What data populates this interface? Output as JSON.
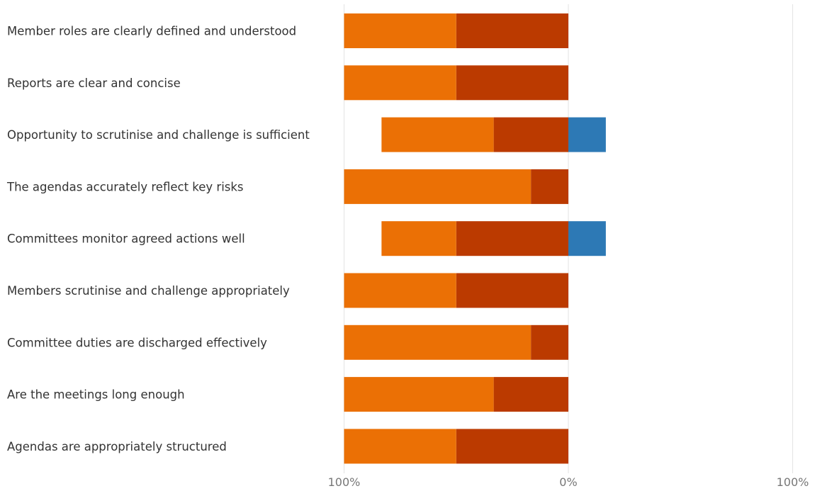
{
  "chart_data": {
    "type": "bar",
    "orientation": "horizontal",
    "stacking": "diverging",
    "categories": [
      "Member roles are clearly defined and understood",
      "Reports are clear and concise",
      "Opportunity to scrutinise and challenge is sufficient",
      "The agendas accurately reflect key risks",
      "Committees monitor agreed actions well",
      "Members scrutinise and challenge appropriately",
      "Committee duties are discharged effectively",
      "Are the meetings long enough",
      "Agendas are appropriately structured"
    ],
    "series": [
      {
        "side": "negative",
        "color": "#bb3a00",
        "values": [
          50,
          50,
          33.3,
          16.7,
          50,
          50,
          16.7,
          33.3,
          50
        ]
      },
      {
        "side": "negative",
        "color": "#eb7005",
        "values": [
          50,
          50,
          50,
          83.3,
          33.3,
          50,
          83.3,
          66.7,
          50
        ]
      },
      {
        "side": "positive",
        "color": "#2d79b5",
        "values": [
          0,
          0,
          16.7,
          0,
          16.7,
          0,
          0,
          0,
          0
        ]
      }
    ],
    "xlim": [
      -100,
      100
    ],
    "xticks": [
      "100%",
      "0%",
      "100%"
    ],
    "grid": true,
    "legend": "none"
  }
}
